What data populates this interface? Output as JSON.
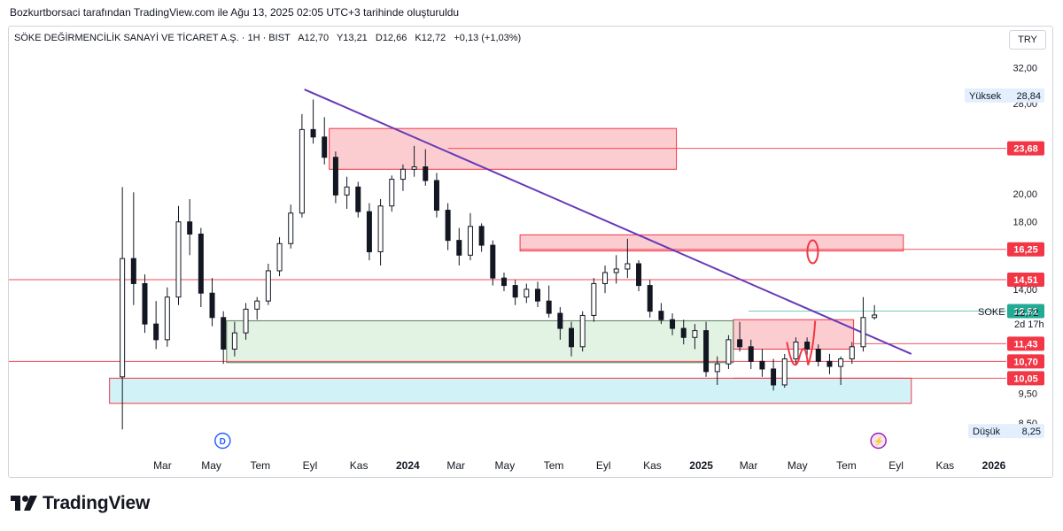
{
  "header": {
    "caption": "Bozkurtborsaci tarafından TradingView.com ile Ağu 13, 2025 02:05 UTC+3 tarihinde oluşturuldu"
  },
  "legend": {
    "symbol_name": "SÖKE DEĞİRMENCİLİK SANAYİ VE TİCARET A.Ş. · 1H · BIST",
    "open": "A12,70",
    "high": "Y13,21",
    "low": "D12,66",
    "close": "K12,72",
    "change": "+0,13 (+1,03%)"
  },
  "currency_button": "TRY",
  "brand": "TradingView",
  "chart_data": {
    "type": "candlestick",
    "title": "SÖKE DEĞİRMENCİLİK SANAYİ VE TİCARET A.Ş.",
    "y_scale": "log",
    "ylim": [
      7.6,
      34
    ],
    "y_ticks": [
      "32,00",
      "28,00",
      "20,00",
      "18,00",
      "14,00",
      "9,50",
      "8,50"
    ],
    "x_ticks": [
      "Mar",
      "May",
      "Tem",
      "Eyl",
      "Kas",
      "2024",
      "Mar",
      "May",
      "Tem",
      "Eyl",
      "Kas",
      "2025",
      "Mar",
      "May",
      "Tem",
      "Eyl",
      "Kas",
      "2026"
    ],
    "x_tick_bold": [
      "2024",
      "2025",
      "2026"
    ],
    "price_labels": [
      {
        "value": 23.68,
        "text": "23,68",
        "color": "#f23645"
      },
      {
        "value": 16.25,
        "text": "16,25",
        "color": "#f23645"
      },
      {
        "value": 14.51,
        "text": "14,51",
        "color": "#f23645"
      },
      {
        "value": 12.91,
        "text": "12,91",
        "color": "#22ab94"
      },
      {
        "value": 11.43,
        "text": "11,43",
        "color": "#f23645"
      },
      {
        "value": 10.7,
        "text": "10,70",
        "color": "#f23645"
      },
      {
        "value": 10.05,
        "text": "10,05",
        "color": "#f23645"
      }
    ],
    "high_label": {
      "name": "Yüksek",
      "value": "28,84"
    },
    "low_label": {
      "name": "Düşük",
      "value": "8,25"
    },
    "last_price": {
      "symbol": "SOKE",
      "value": "12,72",
      "countdown": "2d 17h"
    },
    "horizontal_lines": [
      14.51,
      10.7,
      12.91
    ],
    "zones": [
      {
        "from": "2023-09-25",
        "to": "2024-12-01",
        "low": 21.9,
        "high": 25.5,
        "kind": "resistance"
      },
      {
        "from": "2024-05-20",
        "to": "2025-09-10",
        "low": 16.15,
        "high": 17.15,
        "kind": "resistance"
      },
      {
        "from": "2025-02-10",
        "to": "2025-07-10",
        "low": 11.2,
        "high": 12.5,
        "kind": "resistance"
      },
      {
        "from": "2023-05-20",
        "to": "2025-02-10",
        "low": 10.65,
        "high": 12.45,
        "kind": "support"
      },
      {
        "from": "2022-12-25",
        "to": "2025-09-20",
        "low": 9.15,
        "high": 10.05,
        "kind": "demand"
      }
    ],
    "trendline": {
      "from": {
        "date": "2023-08-25",
        "value": 29.5
      },
      "to": {
        "date": "2025-09-20",
        "value": 11.0
      }
    },
    "events": [
      {
        "date": "2023-05-15",
        "label": "D"
      },
      {
        "date": "2025-08-10",
        "label": "⚡"
      }
    ],
    "candles": [
      [
        "2023-01-10",
        10.1,
        20.5,
        8.3,
        15.7
      ],
      [
        "2023-01-24",
        15.7,
        20.1,
        13.2,
        14.3
      ],
      [
        "2023-02-07",
        14.3,
        14.8,
        11.9,
        12.3
      ],
      [
        "2023-02-21",
        12.3,
        13.4,
        11.2,
        11.6
      ],
      [
        "2023-03-07",
        11.6,
        14.1,
        11.3,
        13.6
      ],
      [
        "2023-03-21",
        13.6,
        19.1,
        13.2,
        18.0
      ],
      [
        "2023-04-04",
        18.0,
        19.6,
        15.9,
        17.2
      ],
      [
        "2023-04-18",
        17.2,
        17.6,
        13.1,
        13.8
      ],
      [
        "2023-05-02",
        13.8,
        14.6,
        12.2,
        12.6
      ],
      [
        "2023-05-16",
        12.6,
        12.9,
        10.6,
        11.2
      ],
      [
        "2023-05-30",
        11.2,
        12.4,
        10.9,
        11.9
      ],
      [
        "2023-06-13",
        11.9,
        13.3,
        11.6,
        13.0
      ],
      [
        "2023-06-27",
        13.0,
        13.6,
        12.5,
        13.4
      ],
      [
        "2023-07-11",
        13.4,
        15.4,
        13.2,
        15.0
      ],
      [
        "2023-07-25",
        15.0,
        17.0,
        14.7,
        16.6
      ],
      [
        "2023-08-08",
        16.6,
        19.2,
        16.3,
        18.6
      ],
      [
        "2023-08-22",
        18.6,
        26.9,
        18.3,
        25.4
      ],
      [
        "2023-09-05",
        25.4,
        28.4,
        24.1,
        24.7
      ],
      [
        "2023-09-19",
        24.7,
        26.6,
        22.3,
        22.9
      ],
      [
        "2023-10-03",
        22.9,
        23.4,
        19.3,
        19.9
      ],
      [
        "2023-10-17",
        19.9,
        21.3,
        18.9,
        20.5
      ],
      [
        "2023-10-31",
        20.5,
        20.9,
        18.3,
        18.7
      ],
      [
        "2023-11-14",
        18.7,
        19.3,
        15.6,
        16.1
      ],
      [
        "2023-11-28",
        16.1,
        19.6,
        15.3,
        19.1
      ],
      [
        "2023-12-12",
        19.1,
        21.4,
        18.7,
        21.1
      ],
      [
        "2023-12-26",
        21.1,
        22.3,
        20.2,
        21.9
      ],
      [
        "2024-01-09",
        21.9,
        23.9,
        21.3,
        22.1
      ],
      [
        "2024-01-23",
        22.1,
        23.6,
        20.6,
        21.0
      ],
      [
        "2024-02-06",
        21.0,
        21.6,
        18.3,
        18.8
      ],
      [
        "2024-02-20",
        18.8,
        19.3,
        16.2,
        16.8
      ],
      [
        "2024-03-05",
        16.8,
        17.6,
        15.3,
        15.9
      ],
      [
        "2024-03-19",
        15.9,
        18.6,
        15.6,
        17.7
      ],
      [
        "2024-04-02",
        17.7,
        17.9,
        16.1,
        16.5
      ],
      [
        "2024-04-16",
        16.5,
        16.8,
        14.2,
        14.6
      ],
      [
        "2024-04-30",
        14.6,
        14.9,
        13.9,
        14.2
      ],
      [
        "2024-05-14",
        14.2,
        14.5,
        13.2,
        13.6
      ],
      [
        "2024-05-28",
        13.6,
        14.3,
        13.3,
        14.0
      ],
      [
        "2024-06-11",
        14.0,
        14.4,
        13.1,
        13.4
      ],
      [
        "2024-06-25",
        13.4,
        14.2,
        12.6,
        12.8
      ],
      [
        "2024-07-09",
        12.8,
        13.1,
        11.6,
        12.1
      ],
      [
        "2024-07-23",
        12.1,
        12.4,
        10.9,
        11.3
      ],
      [
        "2024-08-06",
        11.3,
        12.9,
        11.1,
        12.7
      ],
      [
        "2024-08-20",
        12.7,
        14.6,
        12.4,
        14.3
      ],
      [
        "2024-09-03",
        14.3,
        15.3,
        13.8,
        14.9
      ],
      [
        "2024-09-17",
        14.9,
        15.9,
        14.3,
        15.1
      ],
      [
        "2024-10-01",
        15.1,
        16.9,
        14.6,
        15.4
      ],
      [
        "2024-10-15",
        15.4,
        15.6,
        13.9,
        14.2
      ],
      [
        "2024-10-29",
        14.2,
        14.5,
        12.6,
        12.9
      ],
      [
        "2024-11-12",
        12.9,
        13.3,
        12.3,
        12.5
      ],
      [
        "2024-11-26",
        12.5,
        12.8,
        11.8,
        12.1
      ],
      [
        "2024-12-10",
        12.1,
        12.5,
        11.4,
        11.7
      ],
      [
        "2024-12-24",
        11.7,
        12.3,
        11.2,
        12.0
      ],
      [
        "2025-01-07",
        12.0,
        12.4,
        10.1,
        10.3
      ],
      [
        "2025-01-21",
        10.3,
        10.9,
        9.8,
        10.6
      ],
      [
        "2025-02-04",
        10.6,
        11.8,
        10.4,
        11.6
      ],
      [
        "2025-02-18",
        11.6,
        12.4,
        11.1,
        11.3
      ],
      [
        "2025-03-04",
        11.3,
        11.6,
        10.4,
        10.7
      ],
      [
        "2025-03-18",
        10.7,
        11.2,
        10.1,
        10.4
      ],
      [
        "2025-04-01",
        10.4,
        10.8,
        9.6,
        9.8
      ],
      [
        "2025-04-15",
        9.8,
        11.0,
        9.7,
        10.8
      ],
      [
        "2025-04-29",
        10.8,
        11.7,
        10.6,
        11.5
      ],
      [
        "2025-05-13",
        11.5,
        11.7,
        10.9,
        11.2
      ],
      [
        "2025-05-27",
        11.2,
        11.4,
        10.5,
        10.7
      ],
      [
        "2025-06-10",
        10.7,
        11.0,
        10.2,
        10.5
      ],
      [
        "2025-06-24",
        10.5,
        10.9,
        9.8,
        10.8
      ],
      [
        "2025-07-08",
        10.8,
        11.5,
        10.6,
        11.3
      ],
      [
        "2025-07-22",
        11.3,
        13.6,
        11.1,
        12.6
      ],
      [
        "2025-08-05",
        12.6,
        13.2,
        12.5,
        12.72
      ]
    ]
  }
}
